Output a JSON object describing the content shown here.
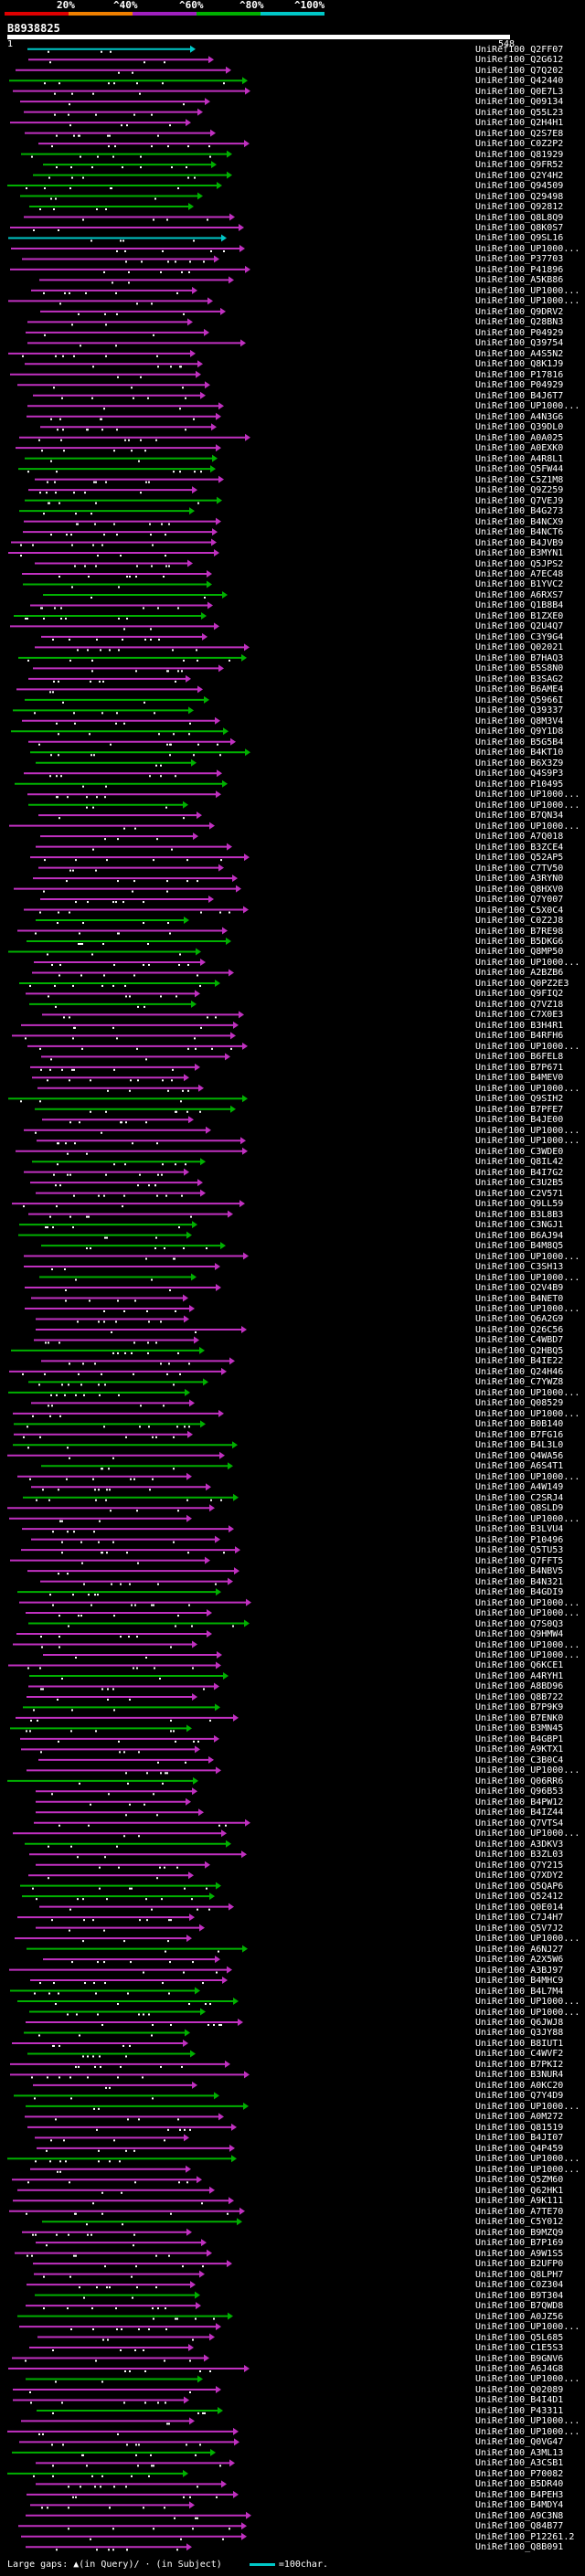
{
  "legend": {
    "ticks": [
      "20%",
      "^40%",
      "^60%",
      "^80%",
      "^100%"
    ],
    "colors": [
      "#e00000",
      "#f08000",
      "#a020c0",
      "#00b000",
      "#00c8c8"
    ]
  },
  "query": {
    "id": "B8938825",
    "start": "1",
    "end": "548"
  },
  "footer": {
    "gaps": "Large gaps: ▲(in Query)/ · (in Subject)",
    "scale": "=100char."
  },
  "hits": [
    "UniRef100_Q2FF07",
    "UniRef100_Q2G612",
    "UniRef100_Q7Q202",
    "UniRef100_Q42440",
    "UniRef100_Q0E7L3",
    "UniRef100_Q09134",
    "UniRef100_Q55L23",
    "UniRef100_Q2H4H1",
    "UniRef100_Q2S7E8",
    "UniRef100_C0Z2P2",
    "UniRef100_Q81929",
    "UniRef100_Q9FR52",
    "UniRef100_Q2Y4H2",
    "UniRef100_Q94509",
    "UniRef100_Q29498",
    "UniRef100_Q92812",
    "UniRef100_Q8L8Q9",
    "UniRef100_Q8K0S7",
    "UniRef100_Q9SL16",
    "UniRef100_UP1000...",
    "UniRef100_P37703",
    "UniRef100_P41896",
    "UniRef100_A5KB86",
    "UniRef100_UP1000...",
    "UniRef100_UP1000...",
    "UniRef100_Q9DRV2",
    "UniRef100_Q28BN3",
    "UniRef100_P04929",
    "UniRef100_Q39754",
    "UniRef100_A4S5N2",
    "UniRef100_Q8K1J9",
    "UniRef100_P17816",
    "UniRef100_P04929",
    "UniRef100_B4J6T7",
    "UniRef100_UP1000...",
    "UniRef100_A4N3G6",
    "UniRef100_Q39DL0",
    "UniRef100_A0A025",
    "UniRef100_A0EXK0",
    "UniRef100_A4R8L1",
    "UniRef100_Q5FW44",
    "UniRef100_C5Z1M8",
    "UniRef100_Q9Z259",
    "UniRef100_Q7VEJ9",
    "UniRef100_B4G273",
    "UniRef100_B4NCX9",
    "UniRef100_B4NCT6",
    "UniRef100_B4JVB9",
    "UniRef100_B3MYN1",
    "UniRef100_Q5JPS2",
    "UniRef100_A7EC48",
    "UniRef100_B1YVC2",
    "UniRef100_A6RXS7",
    "UniRef100_Q1B8B4",
    "UniRef100_B1ZXE0",
    "UniRef100_Q2U4Q7",
    "UniRef100_C3Y9G4",
    "UniRef100_Q02021",
    "UniRef100_B7HAQ3",
    "UniRef100_B5S8N0",
    "UniRef100_B3SAG2",
    "UniRef100_B6AME4",
    "UniRef100_Q5966I",
    "UniRef100_Q39337",
    "UniRef100_Q8M3V4",
    "UniRef100_Q9Y1D8",
    "UniRef100_B5G5B4",
    "UniRef100_B4KT10",
    "UniRef100_B6X3Z9",
    "UniRef100_Q4S9P3",
    "UniRef100_P10495",
    "UniRef100_UP1000...",
    "UniRef100_UP1000...",
    "UniRef100_B7QN34",
    "UniRef100_UP1000...",
    "UniRef100_A7Q018",
    "UniRef100_B3ZCE4",
    "UniRef100_Q52AP5",
    "UniRef100_C7TV50",
    "UniRef100_A3RYN0",
    "UniRef100_Q8HXV0",
    "UniRef100_Q7Y007",
    "UniRef100_C5X0C4",
    "UniRef100_C0Z2J8",
    "UniRef100_B7RE98",
    "UniRef100_B5DKG6",
    "UniRef100_Q8MP50",
    "UniRef100_UP1000...",
    "UniRef100_A2BZB6",
    "UniRef100_Q0PZ2E3",
    "UniRef100_Q9FIQ2",
    "UniRef100_Q7VZ18",
    "UniRef100_C7X0E3",
    "UniRef100_B3H4R1",
    "UniRef100_B4RFH6",
    "UniRef100_UP1000...",
    "UniRef100_B6FEL8",
    "UniRef100_B7P671",
    "UniRef100_B4MEV0",
    "UniRef100_UP1000...",
    "UniRef100_Q9SIH2",
    "UniRef100_B7PFE7",
    "UniRef100_B4JE00",
    "UniRef100_UP1000...",
    "UniRef100_UP1000...",
    "UniRef100_C3WDE0",
    "UniRef100_Q8IL42",
    "UniRef100_B4I7G2",
    "UniRef100_C3U2B5",
    "UniRef100_C2V571",
    "UniRef100_Q9LL59",
    "UniRef100_B3L8B3",
    "UniRef100_C3NGJ1",
    "UniRef100_B6AJ94",
    "UniRef100_B4M8Q5",
    "UniRef100_UP1000...",
    "UniRef100_C3SH13",
    "UniRef100_UP1000...",
    "UniRef100_Q2V4B9",
    "UniRef100_B4NET0",
    "UniRef100_UP1000...",
    "UniRef100_Q6A2G9",
    "UniRef100_Q26C56",
    "UniRef100_C4WBD7",
    "UniRef100_Q2HBQ5",
    "UniRef100_B4IE22",
    "UniRef100_Q24H46",
    "UniRef100_C7YWZ8",
    "UniRef100_UP1000...",
    "UniRef100_Q08529",
    "UniRef100_UP1000...",
    "UniRef100_B0B140",
    "UniRef100_B7FG16",
    "UniRef100_B4L3L0",
    "UniRef100_Q4WA56",
    "UniRef100_A6S4T1",
    "UniRef100_UP1000...",
    "UniRef100_A4W149",
    "UniRef100_C2SRJ4",
    "UniRef100_Q8SLD9",
    "UniRef100_UP1000...",
    "UniRef100_B3LVU4",
    "UniRef100_P10496",
    "UniRef100_Q5TU53",
    "UniRef100_Q7FFT5",
    "UniRef100_B4NBV5",
    "UniRef100_B4N321",
    "UniRef100_B4GDI9",
    "UniRef100_UP1000...",
    "UniRef100_UP1000...",
    "UniRef100_Q7S0Q3",
    "UniRef100_Q9HMW4",
    "UniRef100_UP1000...",
    "UniRef100_UP1000...",
    "UniRef100_Q6KCE1",
    "UniRef100_A4RYH1",
    "UniRef100_A8BD96",
    "UniRef100_Q8B722",
    "UniRef100_B7P9K9",
    "UniRef100_B7ENK0",
    "UniRef100_B3MN45",
    "UniRef100_B4GBP1",
    "UniRef100_A9KTX1",
    "UniRef100_C3B0C4",
    "UniRef100_UP1000...",
    "UniRef100_Q06RR6",
    "UniRef100_Q96B53",
    "UniRef100_B4PW12",
    "UniRef100_B4IZ44",
    "UniRef100_Q7VTS4",
    "UniRef100_UP1000...",
    "UniRef100_A3DKV3",
    "UniRef100_B3ZL03",
    "UniRef100_Q7Y215",
    "UniRef100_Q7XDY2",
    "UniRef100_Q5QAP6",
    "UniRef100_Q52412",
    "UniRef100_Q0E014",
    "UniRef100_C7J4H7",
    "UniRef100_Q5V7J2",
    "UniRef100_UP1000...",
    "UniRef100_A6NJ27",
    "UniRef100_A2X5W6",
    "UniRef100_A3BJ97",
    "UniRef100_B4MHC9",
    "UniRef100_B4L7M4",
    "UniRef100_UP1000...",
    "UniRef100_UP1000...",
    "UniRef100_Q6JWJ8",
    "UniRef100_Q3JY88",
    "UniRef100_B8IUT1",
    "UniRef100_C4WVF2",
    "UniRef100_B7PKI2",
    "UniRef100_B3NUR4",
    "UniRef100_A0KC20",
    "UniRef100_Q7Y4D9",
    "UniRef100_UP1000...",
    "UniRef100_A0M272",
    "UniRef100_Q81519",
    "UniRef100_B4JI07",
    "UniRef100_Q4P459",
    "UniRef100_UP1000...",
    "UniRef100_UP1000...",
    "UniRef100_Q5ZM60",
    "UniRef100_Q62HK1",
    "UniRef100_A9K111",
    "UniRef100_A7TE70",
    "UniRef100_C5Y012",
    "UniRef100_B9MZQ9",
    "UniRef100_B7P169",
    "UniRef100_A9W1S5",
    "UniRef100_B2UFP0",
    "UniRef100_Q8LPH7",
    "UniRef100_C0Z304",
    "UniRef100_B9T304",
    "UniRef100_B7QWD8",
    "UniRef100_A0JZ56",
    "UniRef100_UP1000...",
    "UniRef100_Q5L685",
    "UniRef100_C1E5S3",
    "UniRef100_B9GNV6",
    "UniRef100_A6J4G8",
    "UniRef100_UP1000...",
    "UniRef100_Q02089",
    "UniRef100_B4I4D1",
    "UniRef100_P43311",
    "UniRef100_UP1000...",
    "UniRef100_UP1000...",
    "UniRef100_Q0VG47",
    "UniRef100_A3ML13",
    "UniRef100_A3CSB1",
    "UniRef100_P70082",
    "UniRef100_B5DR40",
    "UniRef100_B4PEH3",
    "UniRef100_B4MDY4",
    "UniRef100_A9C3N8",
    "UniRef100_Q84B77",
    "UniRef100_P12261.2",
    "UniRef100_Q8B091"
  ]
}
